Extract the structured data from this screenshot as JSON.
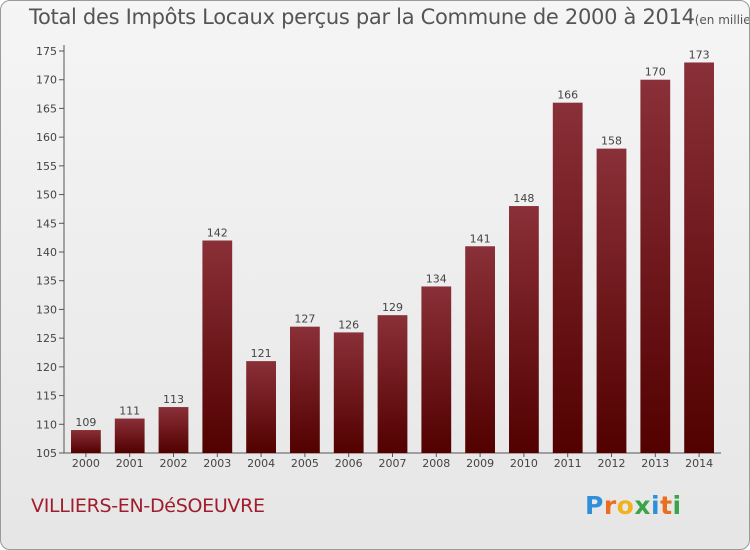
{
  "chart_data": {
    "type": "bar",
    "title": "Total des Impôts Locaux perçus par la Commune de 2000 à 2014",
    "unit_note": "(en milliers d'€)",
    "categories": [
      "2000",
      "2001",
      "2002",
      "2003",
      "2004",
      "2005",
      "2006",
      "2007",
      "2008",
      "2009",
      "2010",
      "2011",
      "2012",
      "2013",
      "2014"
    ],
    "values": [
      109,
      111,
      113,
      142,
      121,
      127,
      126,
      129,
      134,
      141,
      148,
      166,
      158,
      170,
      173
    ],
    "ylim": [
      105,
      175
    ],
    "yticks": [
      105,
      110,
      115,
      120,
      125,
      130,
      135,
      140,
      145,
      150,
      155,
      160,
      165,
      170,
      175
    ],
    "xlabel": "",
    "ylabel": "",
    "grid": false,
    "bar_color_top": "#8a3038",
    "bar_color_bottom": "#520000"
  },
  "commune": "VILLIERS-EN-DéSOEUVRE",
  "logo": {
    "letters": [
      "P",
      "r",
      "o",
      "x",
      "i",
      "t",
      "i"
    ],
    "colors": [
      "#2f8fd9",
      "#ec6d1e",
      "#f2b21f",
      "#3aa548",
      "#2f8fd9",
      "#ec6d1e",
      "#3aa548"
    ]
  }
}
